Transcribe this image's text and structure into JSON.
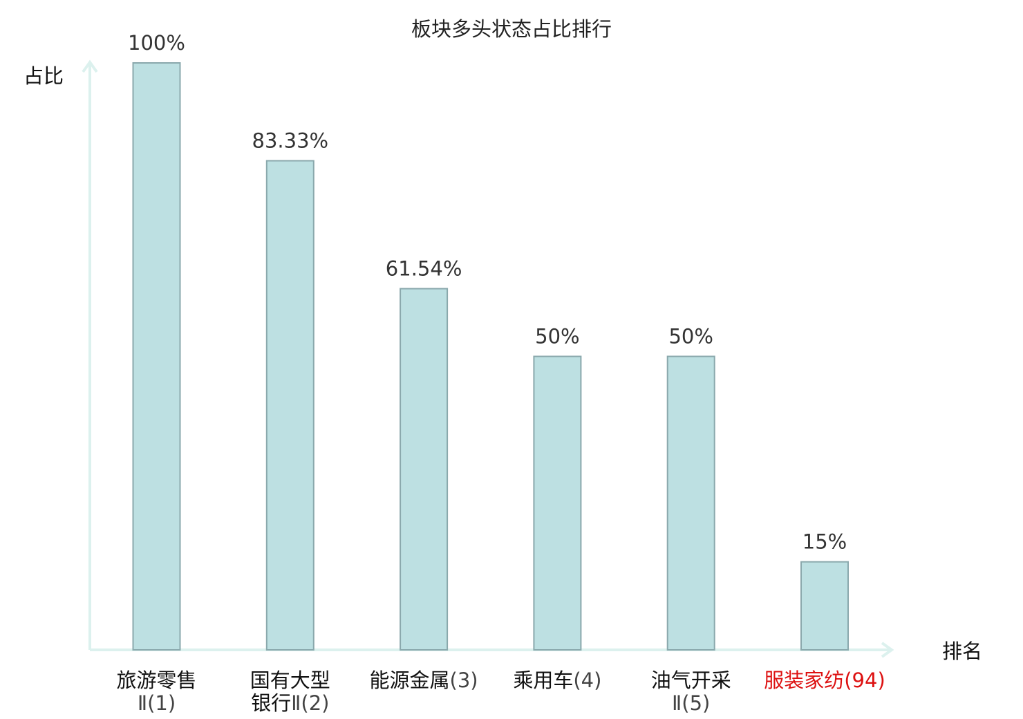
{
  "chart_data": {
    "type": "bar",
    "title": "板块多头状态占比排行",
    "ylabel": "占比",
    "xlabel": "排名",
    "ylim": [
      0,
      100
    ],
    "grid": false,
    "categories": [
      {
        "name": "旅游零售Ⅱ",
        "rank": "(1)",
        "lines": [
          "旅游零售",
          "Ⅱ(1)"
        ],
        "highlight": false
      },
      {
        "name": "国有大型银行Ⅱ",
        "rank": "(2)",
        "lines": [
          "国有大型",
          "银行Ⅱ(2)"
        ],
        "highlight": false
      },
      {
        "name": "能源金属",
        "rank": "(3)",
        "lines": [
          "能源金属(3)"
        ],
        "highlight": false
      },
      {
        "name": "乘用车",
        "rank": "(4)",
        "lines": [
          "乘用车(4)"
        ],
        "highlight": false
      },
      {
        "name": "油气开采Ⅱ",
        "rank": "(5)",
        "lines": [
          "油气开采",
          "Ⅱ(5)"
        ],
        "highlight": false
      },
      {
        "name": "服装家纺",
        "rank": "(94)",
        "lines": [
          "服装家纺(94)"
        ],
        "highlight": true
      }
    ],
    "values": [
      100,
      83.33,
      61.54,
      50,
      50,
      15
    ],
    "value_labels": [
      "100%",
      "83.33%",
      "61.54%",
      "50%",
      "50%",
      "15%"
    ],
    "colors": {
      "bar_fill": "#bde0e2",
      "bar_stroke": "#8aa8ac",
      "axis": "#dcf1ee",
      "highlight_text": "#dd1111"
    }
  }
}
